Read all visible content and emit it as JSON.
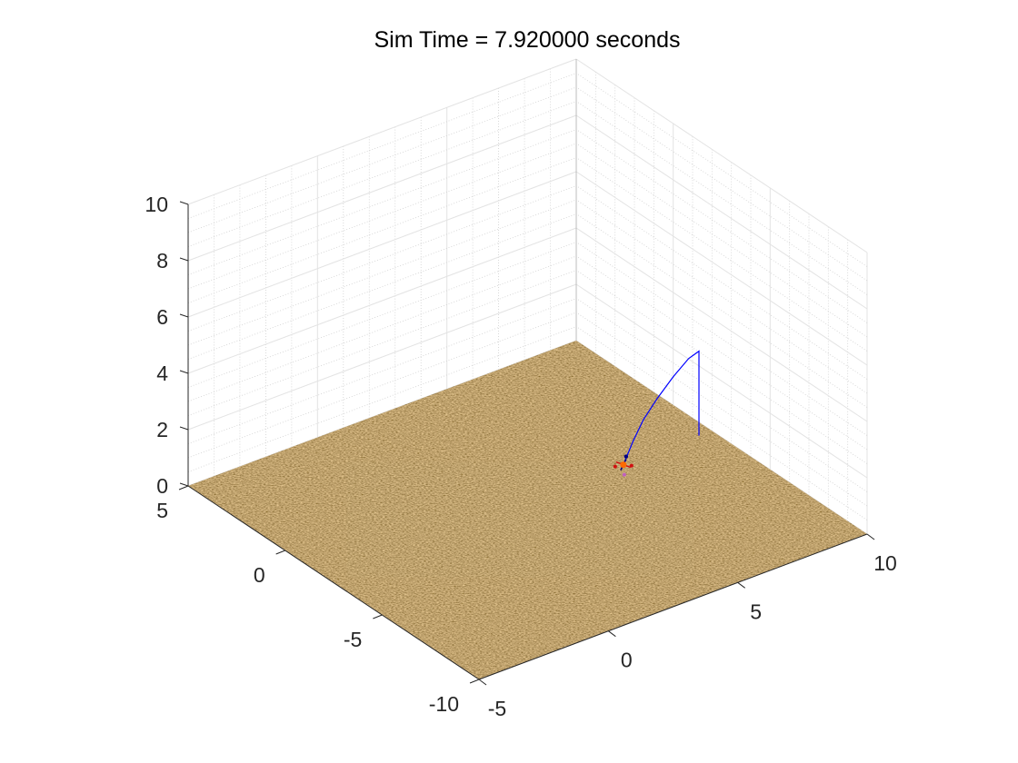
{
  "chart_data": {
    "type": "line",
    "title": "Sim Time = 7.920000 seconds",
    "xlabel": "",
    "ylabel": "",
    "zlabel": "",
    "xlim": [
      -5,
      10
    ],
    "ylim": [
      -10,
      5
    ],
    "zlim": [
      0,
      10
    ],
    "x_ticks": [
      "-5",
      "0",
      "5",
      "10"
    ],
    "y_ticks": [
      "-10",
      "-5",
      "0",
      "5"
    ],
    "z_ticks": [
      "0",
      "2",
      "4",
      "6",
      "8",
      "10"
    ],
    "grid": true,
    "legend": "none",
    "ground_texture": "terrain",
    "series": [
      {
        "color": "#0000ff",
        "x": [
          5.0,
          5.0,
          5.0,
          5.2,
          5.5,
          5.8,
          6.0,
          6.2,
          6.4,
          6.5
        ],
        "y": [
          -8.0,
          -8.0,
          -8.0,
          -7.2,
          -6.0,
          -4.8,
          -3.8,
          -3.0,
          -2.4,
          -2.1
        ],
        "z": [
          4.3,
          5.5,
          7.3,
          6.6,
          5.3,
          3.9,
          2.6,
          1.4,
          0.5,
          0.05
        ]
      }
    ],
    "vehicle": {
      "x": 6.5,
      "y": -2.1,
      "z": 0.05,
      "marker_colors": [
        "#000080",
        "#d01010",
        "#ff6a00",
        "#c060c0"
      ]
    }
  }
}
